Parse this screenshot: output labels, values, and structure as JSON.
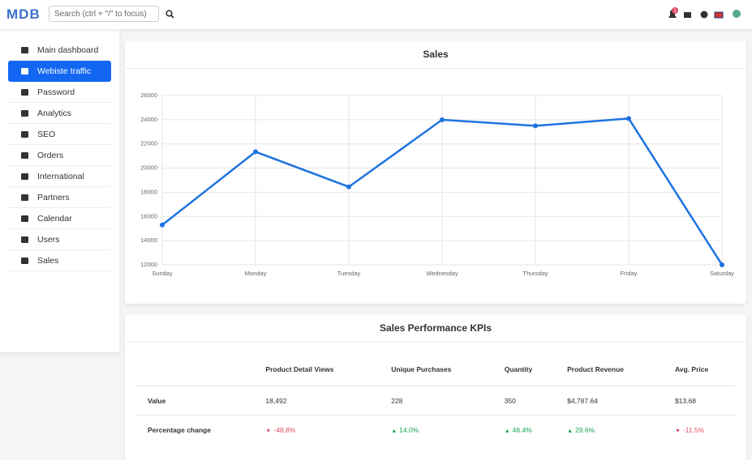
{
  "navbar": {
    "logo": "MDB",
    "search_placeholder": "Search (ctrl + \"/\" to focus)",
    "notification_count": 1
  },
  "sidebar": {
    "items": [
      {
        "label": "Main dashboard"
      },
      {
        "label": "Webiste traffic",
        "active": true
      },
      {
        "label": "Password"
      },
      {
        "label": "Analytics"
      },
      {
        "label": "SEO"
      },
      {
        "label": "Orders"
      },
      {
        "label": "International"
      },
      {
        "label": "Partners"
      },
      {
        "label": "Calendar"
      },
      {
        "label": "Users"
      },
      {
        "label": "Sales"
      }
    ]
  },
  "chart_data": {
    "type": "line",
    "title": "Sales",
    "categories": [
      "Sunday",
      "Monday",
      "Tuesday",
      "Wednesday",
      "Thursday",
      "Friday",
      "Saturday"
    ],
    "series": [
      {
        "name": "Sales",
        "color": "#1e73e0",
        "values": [
          15300,
          21350,
          18450,
          24000,
          23500,
          24100,
          12000
        ]
      }
    ],
    "ylim": [
      12000,
      26000
    ],
    "yticks": [
      12000,
      14000,
      16000,
      18000,
      20000,
      22000,
      24000,
      26000
    ],
    "grid": true
  },
  "kpi_table": {
    "title": "Sales Performance KPIs",
    "columns": [
      "Product Detail Views",
      "Unique Purchases",
      "Quantity",
      "Product Revenue",
      "Avg. Price"
    ],
    "rows": [
      {
        "label": "Value",
        "cells": [
          {
            "text": "18,492"
          },
          {
            "text": "228"
          },
          {
            "text": "350"
          },
          {
            "text": "$4,787.64"
          },
          {
            "text": "$13.68"
          }
        ]
      },
      {
        "label": "Percentage change",
        "cells": [
          {
            "text": "-48.8%",
            "trend": "down"
          },
          {
            "text": "14.0%",
            "trend": "up"
          },
          {
            "text": "46.4%",
            "trend": "up"
          },
          {
            "text": "29.6%",
            "trend": "up"
          },
          {
            "text": "-11.5%",
            "trend": "down"
          }
        ]
      }
    ]
  }
}
